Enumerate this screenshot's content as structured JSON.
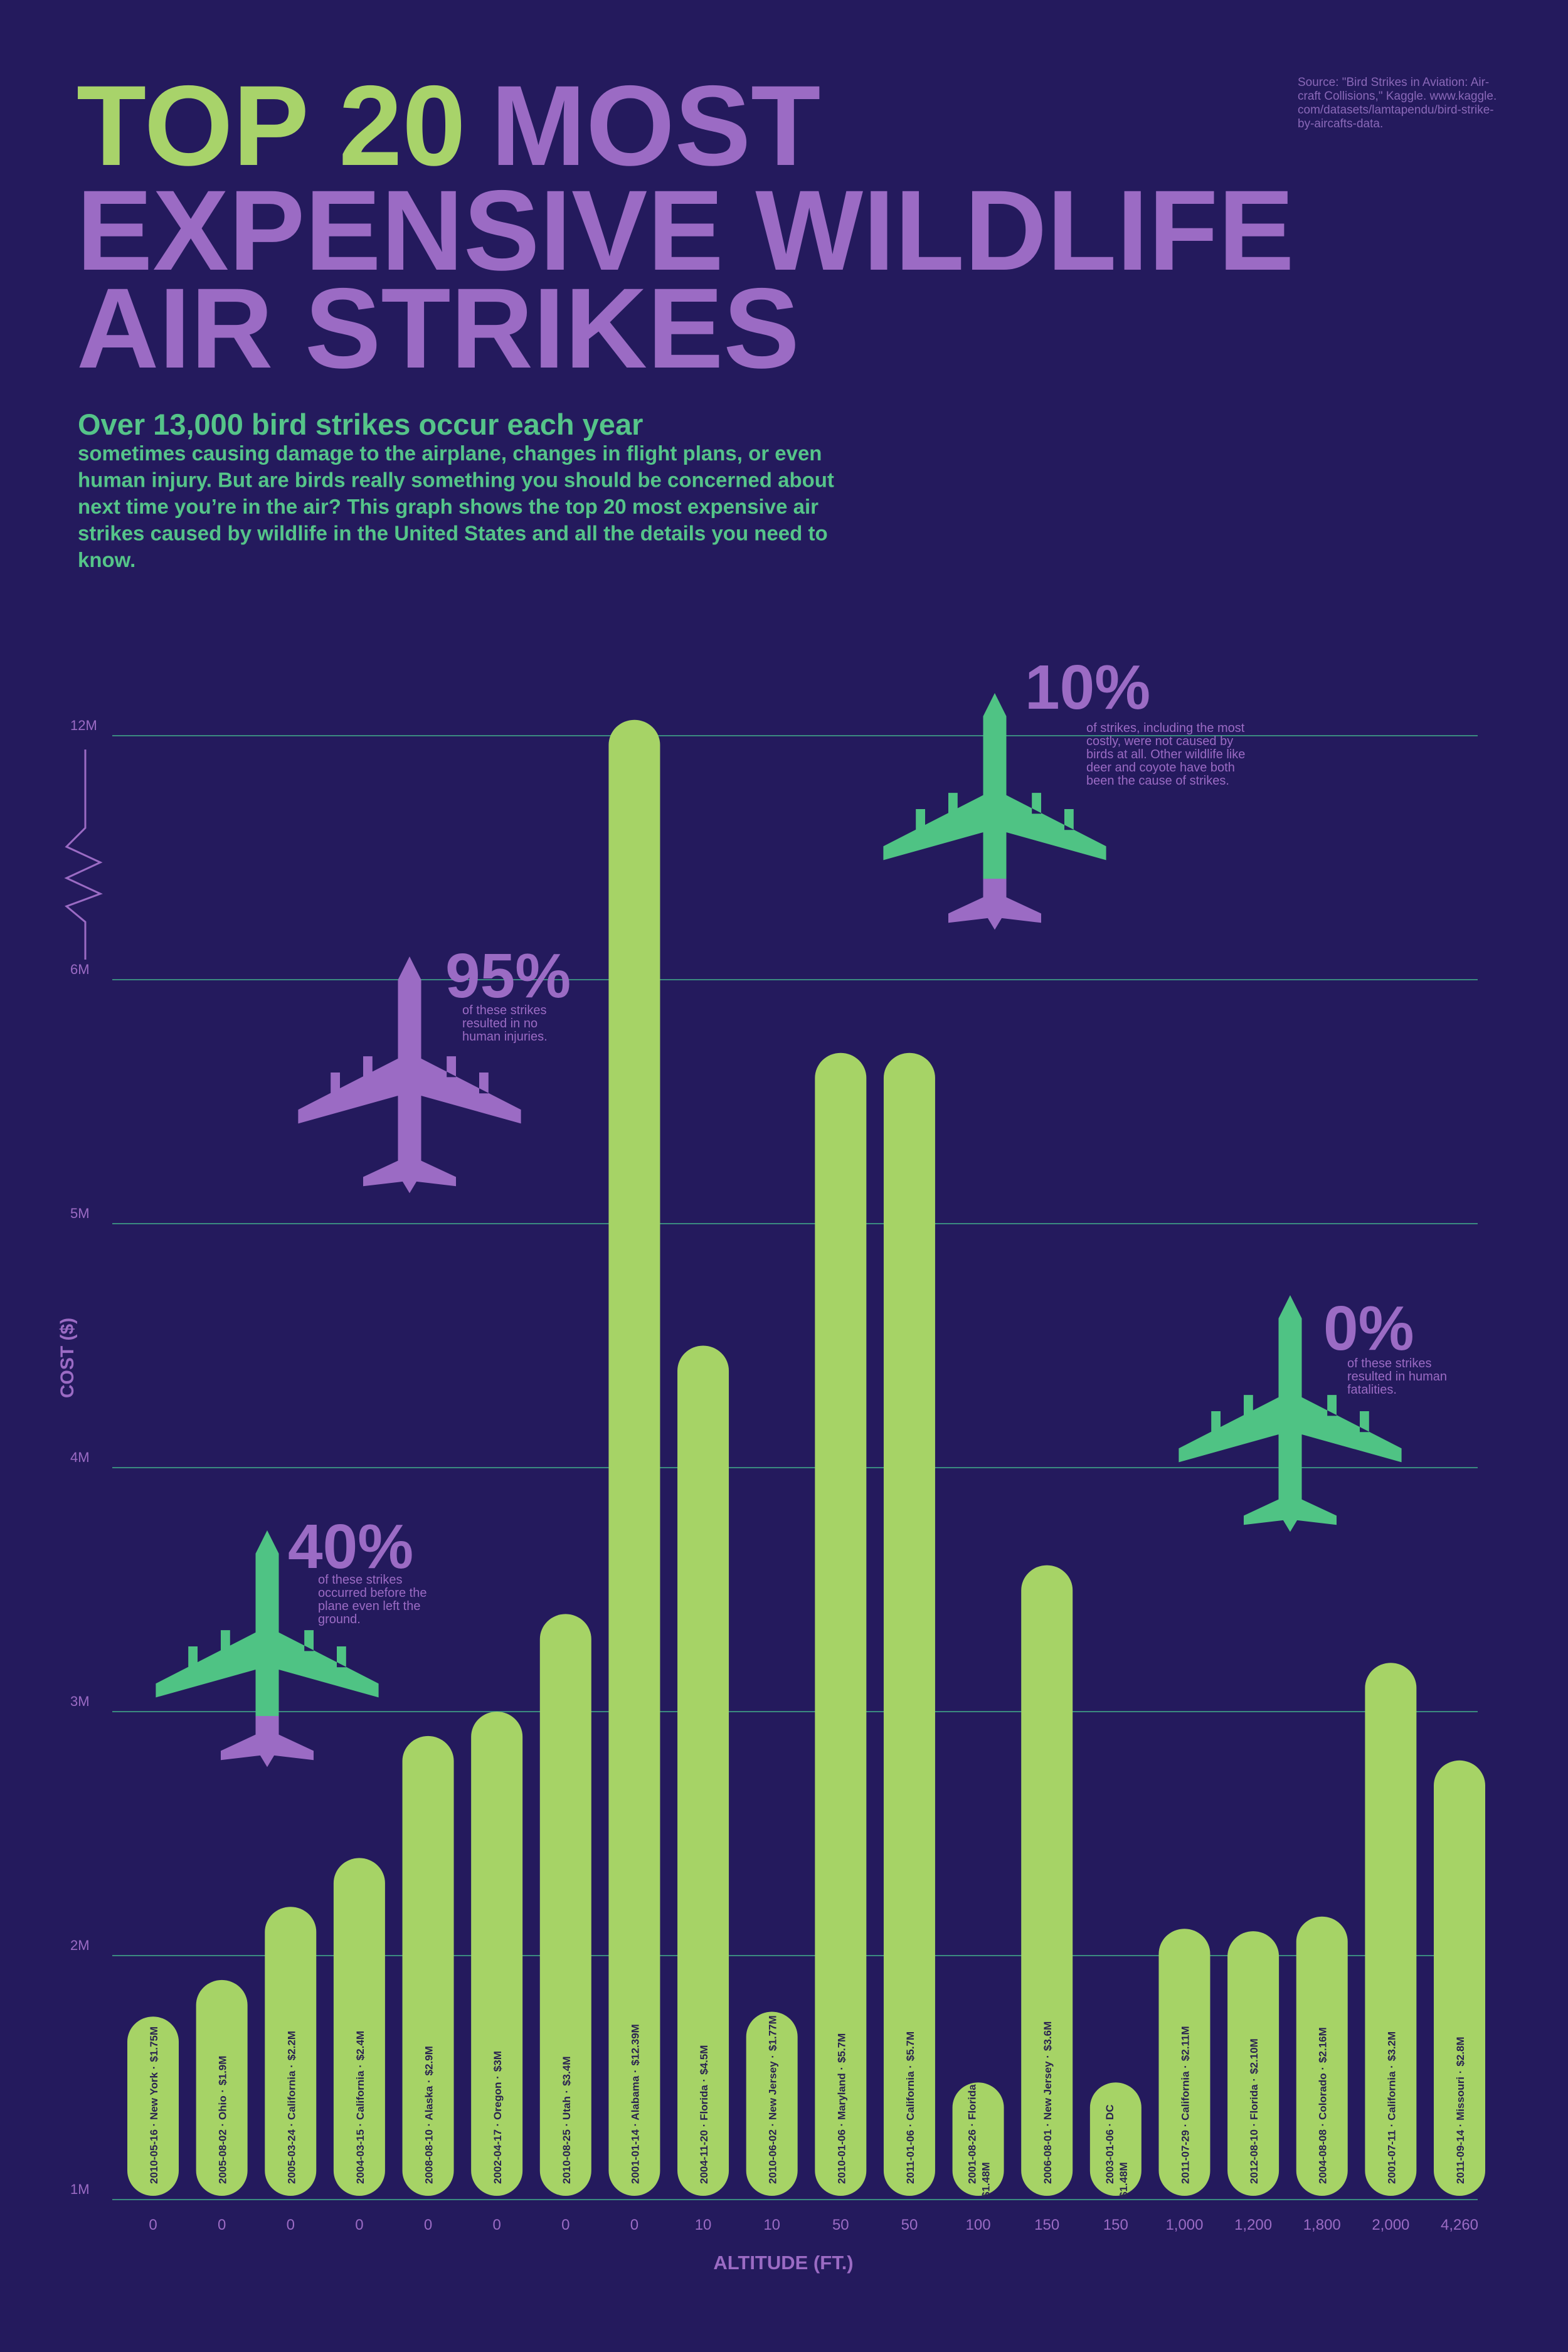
{
  "chart_data": {
    "type": "bar",
    "title_highlight": "TOP 20",
    "title_lines": [
      "MOST",
      "EXPENSIVE WILDLIFE",
      "AIR STRIKES"
    ],
    "source_lines": [
      "Source: \"Bird Strikes in Aviation: Air-",
      "craft Collisions,\" Kaggle. www.kaggle.",
      "com/datasets/lamtapendu/bird-strike-",
      "by-aircafts-data."
    ],
    "subtitle": "Over 13,000 bird strikes occur each year",
    "body_lines": [
      "sometimes causing damage to the airplane, changes in flight plans, or even",
      "human injury. But are birds really something you should be concerned about",
      "next time you’re in the air? This graph shows the top 20 most expensive air",
      "strikes caused by wildlife in the United States and all the details you need to",
      "know."
    ],
    "y_label": "COST ($)",
    "x_label": "ALTITUDE (FT.)",
    "categories": [
      "2010-05-16 · New York ·",
      "2005-08-02 · Ohio ·",
      "2005-03-24 · California ·",
      "2004-03-15 · California ·",
      "2008-08-10 · Alaska ·",
      "2002-04-17 · Oregon ·",
      "2010-08-25 · Utah ·",
      "2001-01-14 · Alabama ·",
      "2004-11-20 · Florida ·",
      "2010-06-02 · New Jersey ·",
      "2010-01-06 · Maryland ·",
      "2011-01-06 · California ·",
      "2001-08-26 · Florida",
      "2006-08-01 · New Jersey ·",
      "2003-01-06 · DC",
      "2011-07-29 · California ·",
      "2012-08-10 · Florida ·",
      "2004-08-08 · Colorado ·",
      "2001-07-11 · California ·",
      "2011-09-14 · Missouri ·"
    ],
    "altitudes": [
      "0",
      "0",
      "0",
      "0",
      "0",
      "0",
      "0",
      "0",
      "10",
      "10",
      "50",
      "50",
      "100",
      "150",
      "150",
      "1,000",
      "1,200",
      "1,800",
      "2,000",
      "4,260"
    ],
    "values": [
      1750000,
      1900000,
      2200000,
      2400000,
      2900000,
      3000000,
      3400000,
      12390000,
      4500000,
      1770000,
      5700000,
      5700000,
      1480000,
      3600000,
      1480000,
      2110000,
      2100000,
      2160000,
      3200000,
      2800000
    ],
    "value_labels": [
      "$1.75M",
      "$1.9M",
      "$2.2M",
      "$2.4M",
      "$2.9M",
      "$3M",
      "$3.4M",
      "$12.39M",
      "$4.5M",
      "$1.77M",
      "$5.7M",
      "$5.7M",
      "$1.48M",
      "$3.6M",
      "$1.48M",
      "$2.11M",
      "$2.10M",
      "$2.16M",
      "$3.2M",
      "$2.8M"
    ],
    "color": "#a6d366",
    "ylim": [
      1000000,
      12000000
    ],
    "yticks": [
      {
        "value": 1000000,
        "label": "1M"
      },
      {
        "value": 2000000,
        "label": "2M"
      },
      {
        "value": 3000000,
        "label": "3M"
      },
      {
        "value": 4000000,
        "label": "4M"
      },
      {
        "value": 5000000,
        "label": "5M"
      },
      {
        "value": 6000000,
        "label": "6M"
      },
      {
        "value": 12000000,
        "label": "12M"
      }
    ],
    "grid": true,
    "annotations": [
      {
        "value_label": "40%",
        "lines": [
          "of these strikes",
          "occurred before the",
          "plane even left the",
          "ground."
        ],
        "color": "#4fc384",
        "tail_color": "#9b6bc4"
      },
      {
        "value_label": "95%",
        "lines": [
          "of these strikes",
          "resulted in no",
          "human injuries."
        ],
        "color": "#9b6bc4",
        "tail_color": "#9b6bc4"
      },
      {
        "value_label": "10%",
        "lines": [
          "of strikes, including the most",
          "costly, were not caused by",
          "birds at all. Other wildlife like",
          "deer and coyote have both",
          "been the cause of strikes."
        ],
        "color": "#4fc384",
        "tail_color": "#9b6bc4"
      },
      {
        "value_label": "0%",
        "lines": [
          "of these strikes",
          "resulted in human",
          "fatalities."
        ],
        "color": "#4fc384",
        "tail_color": "#4fc384"
      }
    ]
  }
}
